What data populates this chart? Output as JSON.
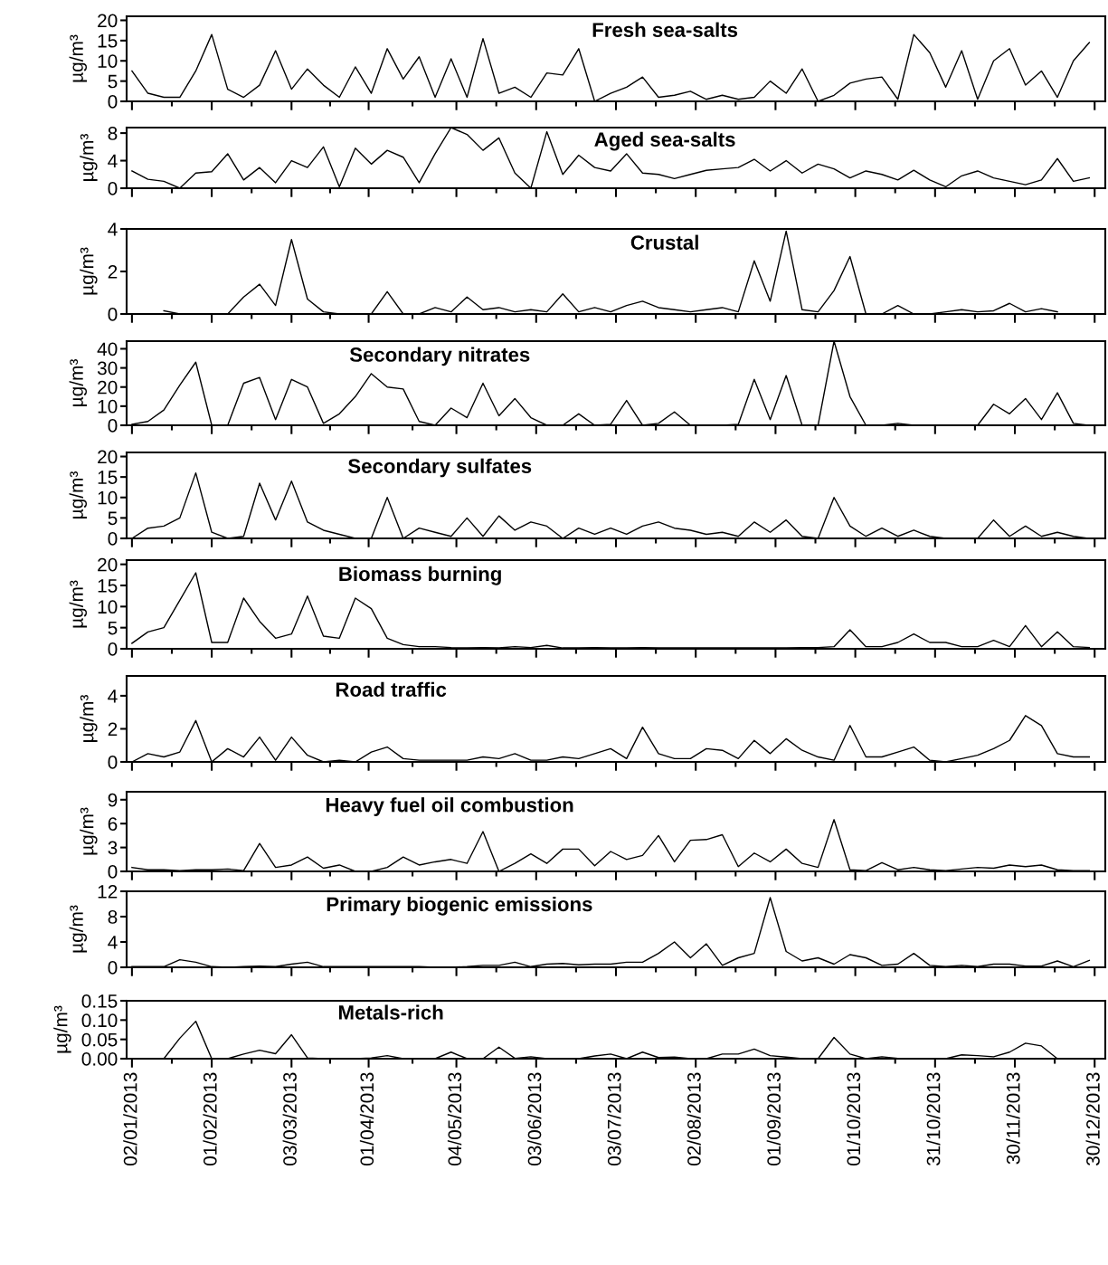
{
  "chart_data": [
    {
      "type": "line",
      "title": "Fresh sea-salts",
      "ylabel": "µg/m³",
      "tick_labels": "y",
      "grid": false,
      "x": [
        "2013-01-02",
        "2013-01-08",
        "2013-01-14",
        "2013-01-20",
        "2013-01-26",
        "2013-02-01",
        "2013-02-07",
        "2013-02-13",
        "2013-02-19",
        "2013-02-25",
        "2013-03-03",
        "2013-03-09",
        "2013-03-15",
        "2013-03-21",
        "2013-03-27",
        "2013-04-02",
        "2013-04-08",
        "2013-04-14",
        "2013-04-20",
        "2013-04-26",
        "2013-05-02",
        "2013-05-08",
        "2013-05-14",
        "2013-05-20",
        "2013-05-26",
        "2013-06-01",
        "2013-06-07",
        "2013-06-13",
        "2013-06-19",
        "2013-06-25",
        "2013-07-01",
        "2013-07-07",
        "2013-07-13",
        "2013-07-19",
        "2013-07-25",
        "2013-07-31",
        "2013-08-06",
        "2013-08-12",
        "2013-08-18",
        "2013-08-24",
        "2013-08-30",
        "2013-09-05",
        "2013-09-11",
        "2013-09-17",
        "2013-09-23",
        "2013-09-29",
        "2013-10-05",
        "2013-10-11",
        "2013-10-17",
        "2013-10-23",
        "2013-10-29",
        "2013-11-04",
        "2013-11-10",
        "2013-11-16",
        "2013-11-22",
        "2013-11-28",
        "2013-12-04",
        "2013-12-10",
        "2013-12-16",
        "2013-12-22",
        "2013-12-28"
      ],
      "series": [
        {
          "color": "#000000",
          "values": [
            7.5,
            2,
            1,
            1,
            7.5,
            16.5,
            3,
            1,
            4,
            12.5,
            3,
            8,
            4,
            1,
            8.5,
            2,
            13,
            5.5,
            11,
            1,
            10.5,
            1,
            15.5,
            2,
            3.5,
            1,
            7,
            6.5,
            13,
            0,
            2,
            3.5,
            6,
            1,
            1.5,
            2.5,
            0.5,
            1.5,
            0.5,
            1,
            5,
            2,
            8,
            0,
            1.5,
            4.5,
            5.5,
            6,
            0.5,
            16.5,
            12,
            3.5,
            12.5,
            0.5,
            10,
            13,
            4,
            7.5,
            1,
            10,
            14.5
          ]
        }
      ],
      "xlim": [
        "2012-12-31",
        "2014-01-03"
      ],
      "ylim": [
        0,
        21
      ],
      "yticks": [
        0,
        5,
        10,
        15,
        20
      ],
      "xticks": [
        {
          "value": "2013-01-02",
          "label": null
        },
        {
          "value": "2013-02-01",
          "label": null
        },
        {
          "value": "2013-03-03",
          "label": null
        },
        {
          "value": "2013-04-01",
          "label": null
        },
        {
          "value": "2013-05-04",
          "label": null
        },
        {
          "value": "2013-06-03",
          "label": null
        },
        {
          "value": "2013-07-03",
          "label": null
        },
        {
          "value": "2013-08-02",
          "label": null
        },
        {
          "value": "2013-09-01",
          "label": null
        },
        {
          "value": "2013-10-01",
          "label": null
        },
        {
          "value": "2013-10-31",
          "label": null
        },
        {
          "value": "2013-11-30",
          "label": null
        },
        {
          "value": "2013-12-30",
          "label": null
        }
      ]
    },
    {
      "type": "line",
      "title": "Aged sea-salts",
      "ylabel": "µg/m³",
      "tick_labels": "y",
      "grid": false,
      "x": [
        "2013-01-02",
        "2013-01-08",
        "2013-01-14",
        "2013-01-20",
        "2013-01-26",
        "2013-02-01",
        "2013-02-07",
        "2013-02-13",
        "2013-02-19",
        "2013-02-25",
        "2013-03-03",
        "2013-03-09",
        "2013-03-15",
        "2013-03-21",
        "2013-03-27",
        "2013-04-02",
        "2013-04-08",
        "2013-04-14",
        "2013-04-20",
        "2013-04-26",
        "2013-05-02",
        "2013-05-08",
        "2013-05-14",
        "2013-05-20",
        "2013-05-26",
        "2013-06-01",
        "2013-06-07",
        "2013-06-13",
        "2013-06-19",
        "2013-06-25",
        "2013-07-01",
        "2013-07-07",
        "2013-07-13",
        "2013-07-19",
        "2013-07-25",
        "2013-07-31",
        "2013-08-06",
        "2013-08-12",
        "2013-08-18",
        "2013-08-24",
        "2013-08-30",
        "2013-09-05",
        "2013-09-11",
        "2013-09-17",
        "2013-09-23",
        "2013-09-29",
        "2013-10-05",
        "2013-10-11",
        "2013-10-17",
        "2013-10-23",
        "2013-10-29",
        "2013-11-04",
        "2013-11-10",
        "2013-11-16",
        "2013-11-22",
        "2013-11-28",
        "2013-12-04",
        "2013-12-10",
        "2013-12-16",
        "2013-12-22",
        "2013-12-28"
      ],
      "series": [
        {
          "color": "#000000",
          "values": [
            2.5,
            1.3,
            1,
            0,
            2.2,
            2.4,
            5,
            1.2,
            3,
            0.8,
            4,
            3,
            6,
            0.2,
            5.8,
            3.5,
            5.5,
            4.5,
            0.8,
            5,
            8.8,
            7.8,
            5.5,
            7.3,
            2.2,
            0,
            8.2,
            2,
            4.8,
            3,
            2.5,
            5,
            2.2,
            2,
            1.4,
            2,
            2.6,
            2.8,
            3,
            4.2,
            2.5,
            4,
            2.2,
            3.5,
            2.8,
            1.5,
            2.5,
            2,
            1.2,
            2.6,
            1.2,
            0.2,
            1.8,
            2.5,
            1.5,
            1,
            0.5,
            1.2,
            4.3,
            1,
            1.5
          ]
        }
      ],
      "xlim": [
        "2012-12-31",
        "2014-01-03"
      ],
      "ylim": [
        0,
        8.8
      ],
      "yticks": [
        0,
        4,
        8
      ],
      "xticks": [
        {
          "value": "2013-01-02",
          "label": null
        },
        {
          "value": "2013-02-01",
          "label": null
        },
        {
          "value": "2013-03-03",
          "label": null
        },
        {
          "value": "2013-04-01",
          "label": null
        },
        {
          "value": "2013-05-04",
          "label": null
        },
        {
          "value": "2013-06-03",
          "label": null
        },
        {
          "value": "2013-07-03",
          "label": null
        },
        {
          "value": "2013-08-02",
          "label": null
        },
        {
          "value": "2013-09-01",
          "label": null
        },
        {
          "value": "2013-10-01",
          "label": null
        },
        {
          "value": "2013-10-31",
          "label": null
        },
        {
          "value": "2013-11-30",
          "label": null
        },
        {
          "value": "2013-12-30",
          "label": null
        }
      ]
    },
    {
      "type": "line",
      "title": "Crustal",
      "ylabel": "µg/m³",
      "tick_labels": "y",
      "grid": false,
      "x": [
        "2013-01-14",
        "2013-01-20",
        "2013-01-26",
        "2013-02-01",
        "2013-02-07",
        "2013-02-13",
        "2013-02-19",
        "2013-02-25",
        "2013-03-03",
        "2013-03-09",
        "2013-03-15",
        "2013-03-21",
        "2013-03-27",
        "2013-04-02",
        "2013-04-08",
        "2013-04-14",
        "2013-04-20",
        "2013-04-26",
        "2013-05-02",
        "2013-05-08",
        "2013-05-14",
        "2013-05-20",
        "2013-05-26",
        "2013-06-01",
        "2013-06-07",
        "2013-06-13",
        "2013-06-19",
        "2013-06-25",
        "2013-07-01",
        "2013-07-07",
        "2013-07-13",
        "2013-07-19",
        "2013-07-25",
        "2013-07-31",
        "2013-08-06",
        "2013-08-12",
        "2013-08-18",
        "2013-08-24",
        "2013-08-30",
        "2013-09-05",
        "2013-09-11",
        "2013-09-17",
        "2013-09-23",
        "2013-09-29",
        "2013-10-05",
        "2013-10-11",
        "2013-10-17",
        "2013-10-23",
        "2013-10-29",
        "2013-11-04",
        "2013-11-10",
        "2013-11-16",
        "2013-11-22",
        "2013-11-28",
        "2013-12-04",
        "2013-12-10",
        "2013-12-16"
      ],
      "series": [
        {
          "color": "#000000",
          "values": [
            0.15,
            0,
            0,
            0,
            0,
            0.8,
            1.4,
            0.4,
            3.5,
            0.7,
            0.1,
            0,
            0,
            0,
            1.05,
            0,
            0,
            0.3,
            0.1,
            0.8,
            0.2,
            0.3,
            0.1,
            0.2,
            0.1,
            0.95,
            0.1,
            0.3,
            0.1,
            0.4,
            0.6,
            0.3,
            0.2,
            0.1,
            0.2,
            0.3,
            0.1,
            2.5,
            0.6,
            3.9,
            0.2,
            0.1,
            1.1,
            2.7,
            0,
            0,
            0.4,
            0,
            0,
            0.1,
            0.2,
            0.1,
            0.15,
            0.5,
            0.1,
            0.25,
            0.1
          ]
        }
      ],
      "xlim": [
        "2012-12-31",
        "2014-01-03"
      ],
      "ylim": [
        0,
        4
      ],
      "yticks": [
        0,
        2,
        4
      ],
      "xticks": [
        {
          "value": "2013-01-02",
          "label": null
        },
        {
          "value": "2013-02-01",
          "label": null
        },
        {
          "value": "2013-03-03",
          "label": null
        },
        {
          "value": "2013-04-01",
          "label": null
        },
        {
          "value": "2013-05-04",
          "label": null
        },
        {
          "value": "2013-06-03",
          "label": null
        },
        {
          "value": "2013-07-03",
          "label": null
        },
        {
          "value": "2013-08-02",
          "label": null
        },
        {
          "value": "2013-09-01",
          "label": null
        },
        {
          "value": "2013-10-01",
          "label": null
        },
        {
          "value": "2013-10-31",
          "label": null
        },
        {
          "value": "2013-11-30",
          "label": null
        },
        {
          "value": "2013-12-30",
          "label": null
        }
      ]
    },
    {
      "type": "line",
      "title": "Secondary nitrates",
      "ylabel": "µg/m³",
      "tick_labels": "y",
      "grid": false,
      "x": [
        "2013-01-02",
        "2013-01-08",
        "2013-01-14",
        "2013-01-20",
        "2013-01-26",
        "2013-02-01",
        "2013-02-07",
        "2013-02-13",
        "2013-02-19",
        "2013-02-25",
        "2013-03-03",
        "2013-03-09",
        "2013-03-15",
        "2013-03-21",
        "2013-03-27",
        "2013-04-02",
        "2013-04-08",
        "2013-04-14",
        "2013-04-20",
        "2013-04-26",
        "2013-05-02",
        "2013-05-08",
        "2013-05-14",
        "2013-05-20",
        "2013-05-26",
        "2013-06-01",
        "2013-06-07",
        "2013-06-13",
        "2013-06-19",
        "2013-06-25",
        "2013-07-01",
        "2013-07-07",
        "2013-07-13",
        "2013-07-19",
        "2013-07-25",
        "2013-07-31",
        "2013-08-06",
        "2013-08-12",
        "2013-08-18",
        "2013-08-24",
        "2013-08-30",
        "2013-09-05",
        "2013-09-11",
        "2013-09-17",
        "2013-09-23",
        "2013-09-29",
        "2013-10-05",
        "2013-10-11",
        "2013-10-17",
        "2013-10-23",
        "2013-10-29",
        "2013-11-04",
        "2013-11-10",
        "2013-11-16",
        "2013-11-22",
        "2013-11-28",
        "2013-12-04",
        "2013-12-10",
        "2013-12-16",
        "2013-12-22",
        "2013-12-28"
      ],
      "series": [
        {
          "color": "#000000",
          "values": [
            0.5,
            2,
            8,
            21,
            33,
            0,
            0,
            22,
            25,
            3,
            24,
            20,
            1,
            6,
            15,
            27,
            20,
            19,
            2,
            0,
            9,
            4,
            22,
            5,
            14,
            4,
            0,
            0,
            6,
            0,
            0.5,
            13,
            0,
            1,
            7,
            0,
            0,
            0,
            0.5,
            24,
            3,
            26,
            0,
            0,
            44,
            15,
            0,
            0,
            1,
            0,
            0,
            0,
            0,
            0,
            11,
            6,
            14,
            3,
            17,
            1,
            0
          ]
        }
      ],
      "xlim": [
        "2012-12-31",
        "2014-01-03"
      ],
      "ylim": [
        0,
        44
      ],
      "yticks": [
        0,
        10,
        20,
        30,
        40
      ],
      "xticks": [
        {
          "value": "2013-01-02",
          "label": null
        },
        {
          "value": "2013-02-01",
          "label": null
        },
        {
          "value": "2013-03-03",
          "label": null
        },
        {
          "value": "2013-04-01",
          "label": null
        },
        {
          "value": "2013-05-04",
          "label": null
        },
        {
          "value": "2013-06-03",
          "label": null
        },
        {
          "value": "2013-07-03",
          "label": null
        },
        {
          "value": "2013-08-02",
          "label": null
        },
        {
          "value": "2013-09-01",
          "label": null
        },
        {
          "value": "2013-10-01",
          "label": null
        },
        {
          "value": "2013-10-31",
          "label": null
        },
        {
          "value": "2013-11-30",
          "label": null
        },
        {
          "value": "2013-12-30",
          "label": null
        }
      ]
    },
    {
      "type": "line",
      "title": "Secondary sulfates",
      "ylabel": "µg/m³",
      "tick_labels": "y",
      "grid": false,
      "x": [
        "2013-01-02",
        "2013-01-08",
        "2013-01-14",
        "2013-01-20",
        "2013-01-26",
        "2013-02-01",
        "2013-02-07",
        "2013-02-13",
        "2013-02-19",
        "2013-02-25",
        "2013-03-03",
        "2013-03-09",
        "2013-03-15",
        "2013-03-21",
        "2013-03-27",
        "2013-04-02",
        "2013-04-08",
        "2013-04-14",
        "2013-04-20",
        "2013-04-26",
        "2013-05-02",
        "2013-05-08",
        "2013-05-14",
        "2013-05-20",
        "2013-05-26",
        "2013-06-01",
        "2013-06-07",
        "2013-06-13",
        "2013-06-19",
        "2013-06-25",
        "2013-07-01",
        "2013-07-07",
        "2013-07-13",
        "2013-07-19",
        "2013-07-25",
        "2013-07-31",
        "2013-08-06",
        "2013-08-12",
        "2013-08-18",
        "2013-08-24",
        "2013-08-30",
        "2013-09-05",
        "2013-09-11",
        "2013-09-17",
        "2013-09-23",
        "2013-09-29",
        "2013-10-05",
        "2013-10-11",
        "2013-10-17",
        "2013-10-23",
        "2013-10-29",
        "2013-11-04",
        "2013-11-10",
        "2013-11-16",
        "2013-11-22",
        "2013-11-28",
        "2013-12-04",
        "2013-12-10",
        "2013-12-16",
        "2013-12-22",
        "2013-12-28"
      ],
      "series": [
        {
          "color": "#000000",
          "values": [
            0,
            2.5,
            3,
            5,
            16,
            1.5,
            0,
            0.5,
            13.5,
            4.5,
            14,
            4,
            2,
            1,
            0,
            0,
            10,
            0,
            2.5,
            1.5,
            0.5,
            5,
            0.5,
            5.5,
            2,
            4,
            3,
            0,
            2.5,
            1,
            2.5,
            1,
            3,
            4,
            2.5,
            2,
            1,
            1.5,
            0.5,
            4,
            1.5,
            4.5,
            0.5,
            0,
            10,
            3,
            0.5,
            2.5,
            0.5,
            2,
            0.5,
            0,
            0,
            0,
            4.5,
            0.5,
            3,
            0.5,
            1.5,
            0.5,
            0
          ]
        }
      ],
      "xlim": [
        "2012-12-31",
        "2014-01-03"
      ],
      "ylim": [
        0,
        21
      ],
      "yticks": [
        0,
        5,
        10,
        15,
        20
      ],
      "xticks": [
        {
          "value": "2013-01-02",
          "label": null
        },
        {
          "value": "2013-02-01",
          "label": null
        },
        {
          "value": "2013-03-03",
          "label": null
        },
        {
          "value": "2013-04-01",
          "label": null
        },
        {
          "value": "2013-05-04",
          "label": null
        },
        {
          "value": "2013-06-03",
          "label": null
        },
        {
          "value": "2013-07-03",
          "label": null
        },
        {
          "value": "2013-08-02",
          "label": null
        },
        {
          "value": "2013-09-01",
          "label": null
        },
        {
          "value": "2013-10-01",
          "label": null
        },
        {
          "value": "2013-10-31",
          "label": null
        },
        {
          "value": "2013-11-30",
          "label": null
        },
        {
          "value": "2013-12-30",
          "label": null
        }
      ]
    },
    {
      "type": "line",
      "title": "Biomass burning",
      "ylabel": "µg/m³",
      "tick_labels": "y",
      "grid": false,
      "x": [
        "2013-01-02",
        "2013-01-08",
        "2013-01-14",
        "2013-01-20",
        "2013-01-26",
        "2013-02-01",
        "2013-02-07",
        "2013-02-13",
        "2013-02-19",
        "2013-02-25",
        "2013-03-03",
        "2013-03-09",
        "2013-03-15",
        "2013-03-21",
        "2013-03-27",
        "2013-04-02",
        "2013-04-08",
        "2013-04-14",
        "2013-04-20",
        "2013-04-26",
        "2013-05-02",
        "2013-05-08",
        "2013-05-14",
        "2013-05-20",
        "2013-05-26",
        "2013-06-01",
        "2013-06-07",
        "2013-06-13",
        "2013-06-19",
        "2013-06-25",
        "2013-07-01",
        "2013-07-07",
        "2013-07-13",
        "2013-07-19",
        "2013-07-25",
        "2013-07-31",
        "2013-08-06",
        "2013-08-12",
        "2013-08-18",
        "2013-08-24",
        "2013-08-30",
        "2013-09-05",
        "2013-09-11",
        "2013-09-17",
        "2013-09-23",
        "2013-09-29",
        "2013-10-05",
        "2013-10-11",
        "2013-10-17",
        "2013-10-23",
        "2013-10-29",
        "2013-11-04",
        "2013-11-10",
        "2013-11-16",
        "2013-11-22",
        "2013-11-28",
        "2013-12-04",
        "2013-12-10",
        "2013-12-16",
        "2013-12-22",
        "2013-12-28"
      ],
      "series": [
        {
          "color": "#000000",
          "values": [
            1.3,
            4,
            5,
            11.5,
            18,
            1.5,
            1.5,
            12,
            6.5,
            2.5,
            3.5,
            12.5,
            3,
            2.5,
            12,
            9.5,
            2.5,
            1,
            0.5,
            0.5,
            0.3,
            0.2,
            0.3,
            0.2,
            0.5,
            0.3,
            0.8,
            0.2,
            0.2,
            0.3,
            0.2,
            0.2,
            0.3,
            0.2,
            0.2,
            0.2,
            0.2,
            0.2,
            0.2,
            0.2,
            0.2,
            0.2,
            0.3,
            0.3,
            0.5,
            4.5,
            0.5,
            0.5,
            1.5,
            3.5,
            1.5,
            1.5,
            0.5,
            0.5,
            2,
            0.5,
            5.5,
            0.5,
            4,
            0.5,
            0.3
          ]
        }
      ],
      "xlim": [
        "2012-12-31",
        "2014-01-03"
      ],
      "ylim": [
        0,
        21
      ],
      "yticks": [
        0,
        5,
        10,
        15,
        20
      ],
      "xticks": [
        {
          "value": "2013-01-02",
          "label": null
        },
        {
          "value": "2013-02-01",
          "label": null
        },
        {
          "value": "2013-03-03",
          "label": null
        },
        {
          "value": "2013-04-01",
          "label": null
        },
        {
          "value": "2013-05-04",
          "label": null
        },
        {
          "value": "2013-06-03",
          "label": null
        },
        {
          "value": "2013-07-03",
          "label": null
        },
        {
          "value": "2013-08-02",
          "label": null
        },
        {
          "value": "2013-09-01",
          "label": null
        },
        {
          "value": "2013-10-01",
          "label": null
        },
        {
          "value": "2013-10-31",
          "label": null
        },
        {
          "value": "2013-11-30",
          "label": null
        },
        {
          "value": "2013-12-30",
          "label": null
        }
      ]
    },
    {
      "type": "line",
      "title": "Road traffic",
      "ylabel": "µg/m³",
      "tick_labels": "y",
      "grid": false,
      "x": [
        "2013-01-02",
        "2013-01-08",
        "2013-01-14",
        "2013-01-20",
        "2013-01-26",
        "2013-02-01",
        "2013-02-07",
        "2013-02-13",
        "2013-02-19",
        "2013-02-25",
        "2013-03-03",
        "2013-03-09",
        "2013-03-15",
        "2013-03-21",
        "2013-03-27",
        "2013-04-02",
        "2013-04-08",
        "2013-04-14",
        "2013-04-20",
        "2013-04-26",
        "2013-05-02",
        "2013-05-08",
        "2013-05-14",
        "2013-05-20",
        "2013-05-26",
        "2013-06-01",
        "2013-06-07",
        "2013-06-13",
        "2013-06-19",
        "2013-06-25",
        "2013-07-01",
        "2013-07-07",
        "2013-07-13",
        "2013-07-19",
        "2013-07-25",
        "2013-07-31",
        "2013-08-06",
        "2013-08-12",
        "2013-08-18",
        "2013-08-24",
        "2013-08-30",
        "2013-09-05",
        "2013-09-11",
        "2013-09-17",
        "2013-09-23",
        "2013-09-29",
        "2013-10-05",
        "2013-10-11",
        "2013-10-17",
        "2013-10-23",
        "2013-10-29",
        "2013-11-04",
        "2013-11-10",
        "2013-11-16",
        "2013-11-22",
        "2013-11-28",
        "2013-12-04",
        "2013-12-10",
        "2013-12-16",
        "2013-12-22",
        "2013-12-28"
      ],
      "series": [
        {
          "color": "#000000",
          "values": [
            0,
            0.5,
            0.3,
            0.6,
            2.5,
            0,
            0.8,
            0.3,
            1.5,
            0.1,
            1.5,
            0.4,
            0,
            0.1,
            0,
            0.6,
            0.9,
            0.2,
            0.1,
            0.1,
            0.1,
            0.1,
            0.3,
            0.2,
            0.5,
            0.1,
            0.1,
            0.3,
            0.2,
            0.5,
            0.8,
            0.2,
            2.1,
            0.5,
            0.2,
            0.2,
            0.8,
            0.7,
            0.2,
            1.3,
            0.5,
            1.4,
            0.7,
            0.3,
            0.1,
            2.2,
            0.3,
            0.3,
            0.6,
            0.9,
            0.1,
            0,
            0.2,
            0.4,
            0.8,
            1.3,
            2.8,
            2.2,
            0.5,
            0.3,
            0.3
          ]
        }
      ],
      "xlim": [
        "2012-12-31",
        "2014-01-03"
      ],
      "ylim": [
        0,
        5.2
      ],
      "yticks": [
        0,
        2,
        4
      ],
      "xticks": [
        {
          "value": "2013-01-02",
          "label": null
        },
        {
          "value": "2013-02-01",
          "label": null
        },
        {
          "value": "2013-03-03",
          "label": null
        },
        {
          "value": "2013-04-01",
          "label": null
        },
        {
          "value": "2013-05-04",
          "label": null
        },
        {
          "value": "2013-06-03",
          "label": null
        },
        {
          "value": "2013-07-03",
          "label": null
        },
        {
          "value": "2013-08-02",
          "label": null
        },
        {
          "value": "2013-09-01",
          "label": null
        },
        {
          "value": "2013-10-01",
          "label": null
        },
        {
          "value": "2013-10-31",
          "label": null
        },
        {
          "value": "2013-11-30",
          "label": null
        },
        {
          "value": "2013-12-30",
          "label": null
        }
      ]
    },
    {
      "type": "line",
      "title": "Heavy fuel oil combustion",
      "ylabel": "µg/m³",
      "tick_labels": "y",
      "grid": false,
      "x": [
        "2013-01-02",
        "2013-01-08",
        "2013-01-14",
        "2013-01-20",
        "2013-01-26",
        "2013-02-01",
        "2013-02-07",
        "2013-02-13",
        "2013-02-19",
        "2013-02-25",
        "2013-03-03",
        "2013-03-09",
        "2013-03-15",
        "2013-03-21",
        "2013-03-27",
        "2013-04-02",
        "2013-04-08",
        "2013-04-14",
        "2013-04-20",
        "2013-04-26",
        "2013-05-02",
        "2013-05-08",
        "2013-05-14",
        "2013-05-20",
        "2013-05-26",
        "2013-06-01",
        "2013-06-07",
        "2013-06-13",
        "2013-06-19",
        "2013-06-25",
        "2013-07-01",
        "2013-07-07",
        "2013-07-13",
        "2013-07-19",
        "2013-07-25",
        "2013-07-31",
        "2013-08-06",
        "2013-08-12",
        "2013-08-18",
        "2013-08-24",
        "2013-08-30",
        "2013-09-05",
        "2013-09-11",
        "2013-09-17",
        "2013-09-23",
        "2013-09-29",
        "2013-10-05",
        "2013-10-11",
        "2013-10-17",
        "2013-10-23",
        "2013-10-29",
        "2013-11-04",
        "2013-11-10",
        "2013-11-16",
        "2013-11-22",
        "2013-11-28",
        "2013-12-04",
        "2013-12-10",
        "2013-12-16",
        "2013-12-22",
        "2013-12-28"
      ],
      "series": [
        {
          "color": "#000000",
          "values": [
            0.5,
            0.2,
            0.2,
            0.1,
            0.2,
            0.2,
            0.3,
            0.1,
            3.5,
            0.5,
            0.8,
            1.8,
            0.4,
            0.8,
            0,
            0,
            0.5,
            1.8,
            0.8,
            1.2,
            1.5,
            1,
            5,
            0,
            1,
            2.2,
            1,
            2.8,
            2.8,
            0.7,
            2.5,
            1.5,
            2,
            4.5,
            1.2,
            3.9,
            4,
            4.6,
            0.6,
            2.3,
            1.2,
            2.8,
            1,
            0.5,
            6.5,
            0.2,
            0.1,
            1.1,
            0.2,
            0.5,
            0.2,
            0.1,
            0.3,
            0.5,
            0.4,
            0.8,
            0.6,
            0.8,
            0.2,
            0.1,
            0.1
          ]
        }
      ],
      "xlim": [
        "2012-12-31",
        "2014-01-03"
      ],
      "ylim": [
        0,
        10
      ],
      "yticks": [
        0,
        3,
        6,
        9
      ],
      "xticks": [
        {
          "value": "2013-01-02",
          "label": null
        },
        {
          "value": "2013-02-01",
          "label": null
        },
        {
          "value": "2013-03-03",
          "label": null
        },
        {
          "value": "2013-04-01",
          "label": null
        },
        {
          "value": "2013-05-04",
          "label": null
        },
        {
          "value": "2013-06-03",
          "label": null
        },
        {
          "value": "2013-07-03",
          "label": null
        },
        {
          "value": "2013-08-02",
          "label": null
        },
        {
          "value": "2013-09-01",
          "label": null
        },
        {
          "value": "2013-10-01",
          "label": null
        },
        {
          "value": "2013-10-31",
          "label": null
        },
        {
          "value": "2013-11-30",
          "label": null
        },
        {
          "value": "2013-12-30",
          "label": null
        }
      ]
    },
    {
      "type": "line",
      "title": "Primary biogenic emissions",
      "ylabel": "µg/m³",
      "tick_labels": "y",
      "grid": false,
      "x": [
        "2013-01-02",
        "2013-01-08",
        "2013-01-14",
        "2013-01-20",
        "2013-01-26",
        "2013-02-01",
        "2013-02-07",
        "2013-02-13",
        "2013-02-19",
        "2013-02-25",
        "2013-03-03",
        "2013-03-09",
        "2013-03-15",
        "2013-03-21",
        "2013-03-27",
        "2013-04-02",
        "2013-04-08",
        "2013-04-14",
        "2013-04-20",
        "2013-04-26",
        "2013-05-02",
        "2013-05-08",
        "2013-05-14",
        "2013-05-20",
        "2013-05-26",
        "2013-06-01",
        "2013-06-07",
        "2013-06-13",
        "2013-06-19",
        "2013-06-25",
        "2013-07-01",
        "2013-07-07",
        "2013-07-13",
        "2013-07-19",
        "2013-07-25",
        "2013-07-31",
        "2013-08-06",
        "2013-08-12",
        "2013-08-18",
        "2013-08-24",
        "2013-08-30",
        "2013-09-05",
        "2013-09-11",
        "2013-09-17",
        "2013-09-23",
        "2013-09-29",
        "2013-10-05",
        "2013-10-11",
        "2013-10-17",
        "2013-10-23",
        "2013-10-29",
        "2013-11-04",
        "2013-11-10",
        "2013-11-16",
        "2013-11-22",
        "2013-11-28",
        "2013-12-04",
        "2013-12-10",
        "2013-12-16",
        "2013-12-22",
        "2013-12-28"
      ],
      "series": [
        {
          "color": "#000000",
          "values": [
            0.1,
            0.1,
            0.1,
            1.2,
            0.8,
            0.1,
            0,
            0.1,
            0.2,
            0.1,
            0.5,
            0.8,
            0.1,
            0.1,
            0.1,
            0.1,
            0.1,
            0.1,
            0.1,
            0,
            0,
            0.1,
            0.3,
            0.3,
            0.8,
            0.1,
            0.5,
            0.6,
            0.4,
            0.5,
            0.5,
            0.8,
            0.8,
            2.2,
            4,
            1.5,
            3.7,
            0.3,
            1.5,
            2.2,
            11,
            2.5,
            1,
            1.5,
            0.5,
            2,
            1.5,
            0.3,
            0.5,
            2.2,
            0.3,
            0.1,
            0.3,
            0.1,
            0.5,
            0.5,
            0.2,
            0.2,
            1,
            0.1,
            1.1
          ]
        }
      ],
      "xlim": [
        "2012-12-31",
        "2014-01-03"
      ],
      "ylim": [
        0,
        12
      ],
      "yticks": [
        0,
        4,
        8,
        12
      ],
      "xticks": [
        {
          "value": "2013-01-02",
          "label": null
        },
        {
          "value": "2013-02-01",
          "label": null
        },
        {
          "value": "2013-03-03",
          "label": null
        },
        {
          "value": "2013-04-01",
          "label": null
        },
        {
          "value": "2013-05-04",
          "label": null
        },
        {
          "value": "2013-06-03",
          "label": null
        },
        {
          "value": "2013-07-03",
          "label": null
        },
        {
          "value": "2013-08-02",
          "label": null
        },
        {
          "value": "2013-09-01",
          "label": null
        },
        {
          "value": "2013-10-01",
          "label": null
        },
        {
          "value": "2013-10-31",
          "label": null
        },
        {
          "value": "2013-11-30",
          "label": null
        },
        {
          "value": "2013-12-30",
          "label": null
        }
      ]
    },
    {
      "type": "line",
      "title": "Metals-rich",
      "ylabel": "µg/m³",
      "grid": false,
      "x": [
        "2013-01-14",
        "2013-01-20",
        "2013-01-26",
        "2013-02-01",
        "2013-02-07",
        "2013-02-13",
        "2013-02-19",
        "2013-02-25",
        "2013-03-03",
        "2013-03-09",
        "2013-03-15",
        "2013-03-21",
        "2013-03-27",
        "2013-04-02",
        "2013-04-08",
        "2013-04-14",
        "2013-04-20",
        "2013-04-26",
        "2013-05-02",
        "2013-05-08",
        "2013-05-14",
        "2013-05-20",
        "2013-05-26",
        "2013-06-01",
        "2013-06-07",
        "2013-06-13",
        "2013-06-19",
        "2013-06-25",
        "2013-07-01",
        "2013-07-07",
        "2013-07-13",
        "2013-07-19",
        "2013-07-25",
        "2013-07-31",
        "2013-08-06",
        "2013-08-12",
        "2013-08-18",
        "2013-08-24",
        "2013-08-30",
        "2013-09-05",
        "2013-09-11",
        "2013-09-17",
        "2013-09-23",
        "2013-09-29",
        "2013-10-05",
        "2013-10-11",
        "2013-10-17",
        "2013-10-23",
        "2013-10-29",
        "2013-11-04",
        "2013-11-10",
        "2013-11-16",
        "2013-11-22",
        "2013-11-28",
        "2013-12-04",
        "2013-12-10",
        "2013-12-16"
      ],
      "series": [
        {
          "color": "#000000",
          "values": [
            0,
            0.053,
            0.097,
            0,
            0,
            0.012,
            0.022,
            0.013,
            0.062,
            0.002,
            0,
            0,
            0,
            0.002,
            0.008,
            0,
            0,
            0,
            0.017,
            0,
            0,
            0.03,
            0.001,
            0.005,
            0,
            0,
            0,
            0.007,
            0.012,
            0,
            0.017,
            0.003,
            0.004,
            0,
            0,
            0.012,
            0.012,
            0.025,
            0.008,
            0.004,
            0,
            0,
            0.055,
            0.012,
            0,
            0.005,
            0.001,
            0,
            0,
            0,
            0.01,
            0.008,
            0.005,
            0.017,
            0.04,
            0.033,
            0
          ]
        }
      ],
      "xlim": [
        "2012-12-31",
        "2014-01-03"
      ],
      "ylim": [
        0,
        0.15
      ],
      "yticks": [
        {
          "value": 0,
          "label": "0.00"
        },
        {
          "value": 0.05,
          "label": "0.05"
        },
        {
          "value": 0.1,
          "label": "0.10"
        },
        {
          "value": 0.15,
          "label": "0.15"
        }
      ],
      "xticks": [
        {
          "value": "2013-01-02",
          "label": "02/01/2013"
        },
        {
          "value": "2013-02-01",
          "label": "01/02/2013"
        },
        {
          "value": "2013-03-03",
          "label": "03/03/2013"
        },
        {
          "value": "2013-04-01",
          "label": "01/04/2013"
        },
        {
          "value": "2013-05-04",
          "label": "04/05/2013"
        },
        {
          "value": "2013-06-03",
          "label": "03/06/2013"
        },
        {
          "value": "2013-07-03",
          "label": "03/07/2013"
        },
        {
          "value": "2013-08-02",
          "label": "02/08/2013"
        },
        {
          "value": "2013-09-01",
          "label": "01/09/2013"
        },
        {
          "value": "2013-10-01",
          "label": "01/10/2013"
        },
        {
          "value": "2013-10-31",
          "label": "31/10/2013"
        },
        {
          "value": "2013-11-30",
          "label": "30/11/2013"
        },
        {
          "value": "2013-12-30",
          "label": "30/12/2013"
        }
      ]
    }
  ]
}
